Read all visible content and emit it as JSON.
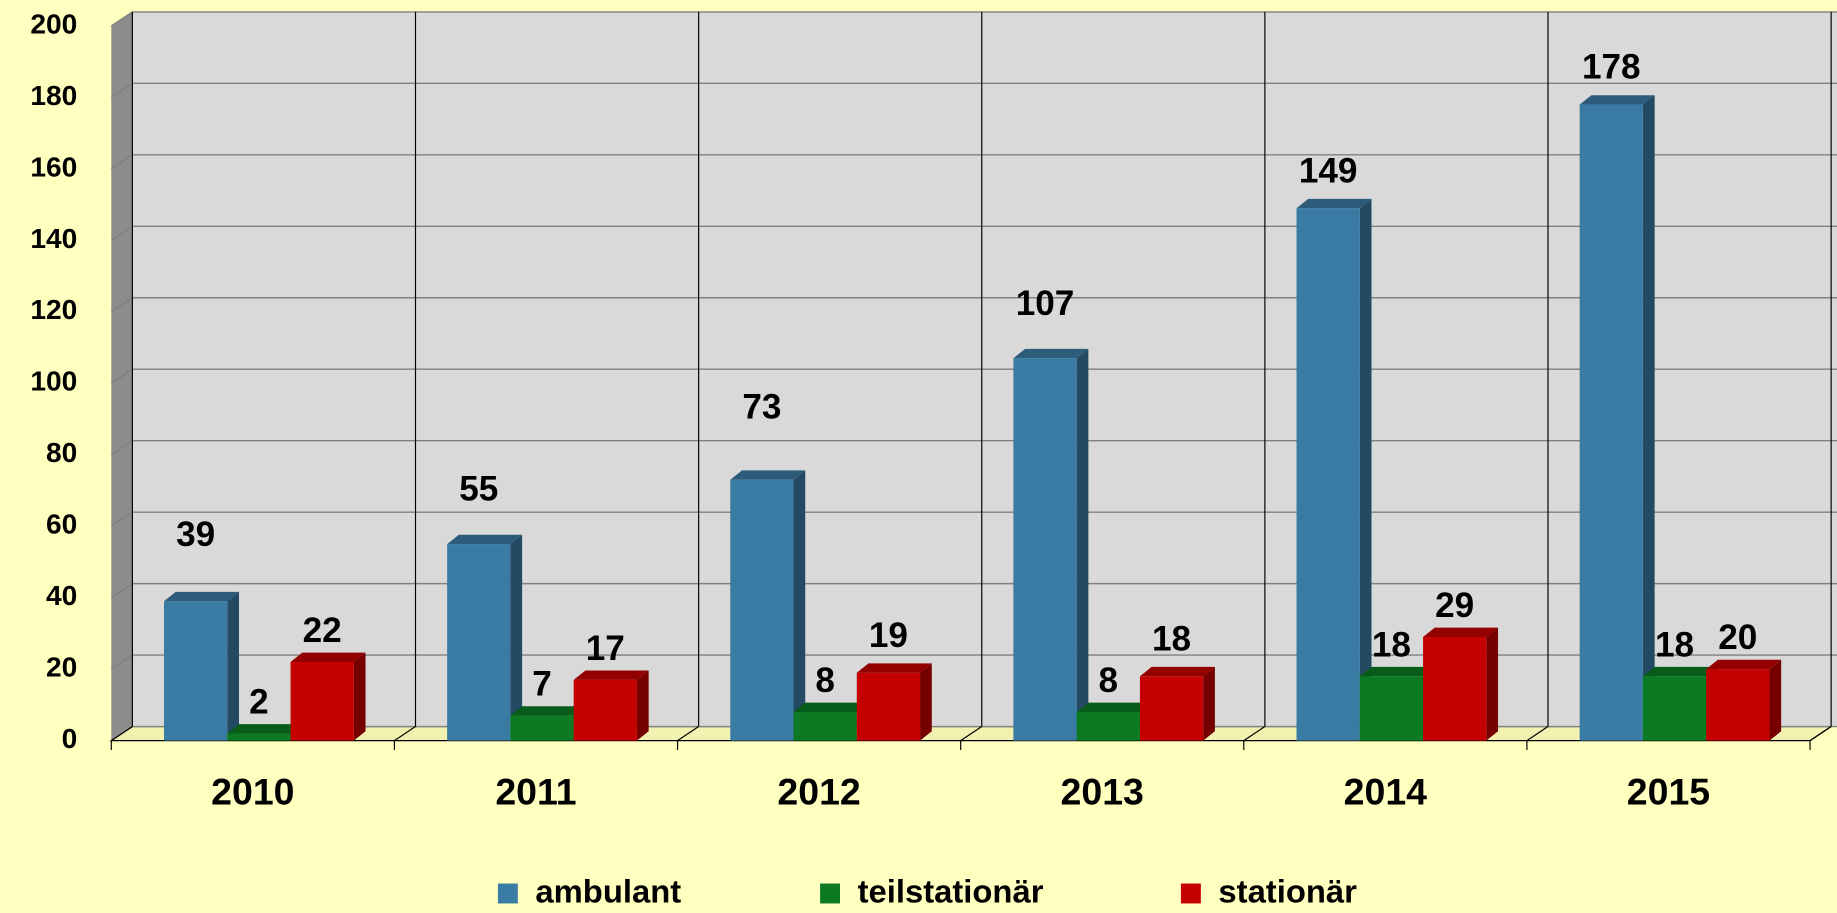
{
  "chart_data": {
    "type": "bar3d",
    "categories": [
      "2010",
      "2011",
      "2012",
      "2013",
      "2014",
      "2015"
    ],
    "series": [
      {
        "name": "ambulant",
        "color": "#3A7BA3",
        "values": [
          39,
          55,
          73,
          107,
          149,
          178
        ]
      },
      {
        "name": "teilstationär",
        "color": "#0B7A22",
        "values": [
          2,
          7,
          8,
          8,
          18,
          18
        ]
      },
      {
        "name": "stationär",
        "color": "#C40000",
        "values": [
          22,
          17,
          19,
          18,
          29,
          20
        ]
      }
    ],
    "ylim": [
      0,
      200
    ],
    "yticks": [
      0,
      20,
      40,
      60,
      80,
      100,
      120,
      140,
      160,
      180,
      200
    ],
    "grid": true,
    "legend": "bottom"
  }
}
